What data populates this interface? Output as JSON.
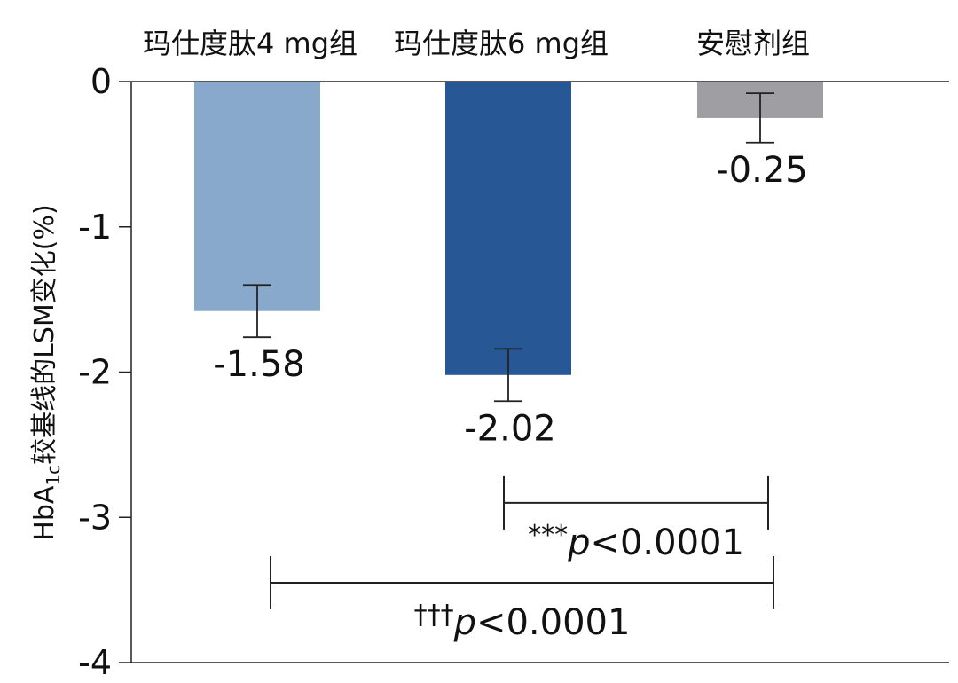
{
  "chart_data": {
    "type": "bar",
    "categories": [
      "玛仕度肽4 mg组",
      "玛仕度肽6 mg组",
      "安慰剂组"
    ],
    "values": [
      -1.58,
      -2.02,
      -0.25
    ],
    "error_low": [
      -1.76,
      -2.2,
      -0.42
    ],
    "error_high": [
      -1.4,
      -1.84,
      -0.08
    ],
    "value_labels": [
      "-1.58",
      "-2.02",
      "-0.25"
    ],
    "colors": [
      "#88a9cc",
      "#275895",
      "#9e9ea3"
    ],
    "ylim": [
      -4,
      0
    ],
    "yticks": [
      0,
      -1,
      -2,
      -3,
      -4
    ],
    "ytick_labels": [
      "0",
      "-1",
      "-2",
      "-3",
      "-4"
    ],
    "ylabel": {
      "prefix": "HbA",
      "subscript": "1c",
      "suffix": "较基线的LSM变化(%)"
    },
    "xlabel": "",
    "grid": false,
    "legend": "none",
    "comparisons": [
      {
        "from": 1,
        "to": 2,
        "y": -2.9,
        "marker": "***",
        "p_italic": "p",
        "p_rest": "<0.0001"
      },
      {
        "from": 0,
        "to": 2,
        "y": -3.45,
        "marker": "†††",
        "p_italic": "p",
        "p_rest": "<0.0001"
      }
    ]
  }
}
